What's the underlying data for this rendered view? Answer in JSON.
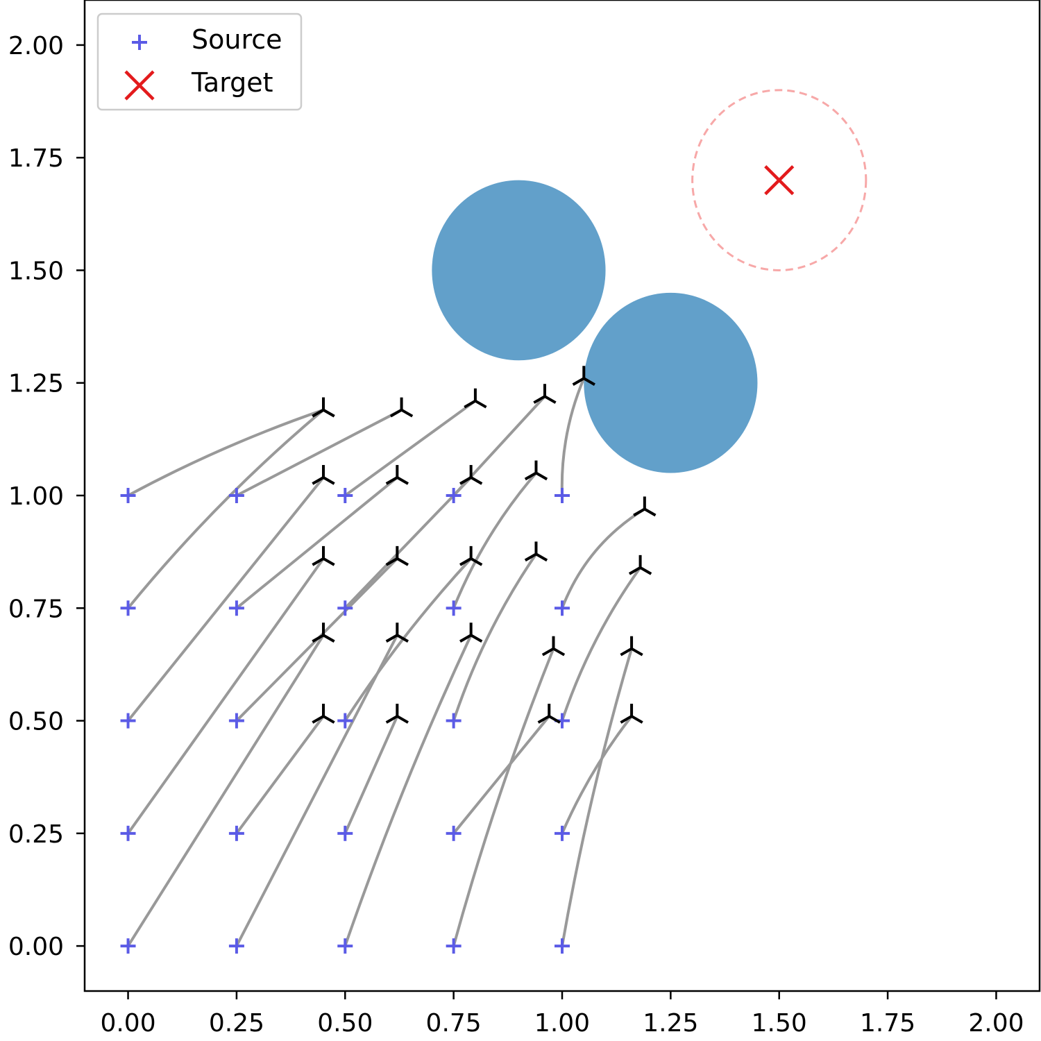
{
  "chart_data": {
    "type": "scatter",
    "title": "",
    "xlabel": "",
    "ylabel": "",
    "xlim": [
      -0.1,
      2.1
    ],
    "ylim": [
      -0.1,
      2.1
    ],
    "xticks": [
      "0.00",
      "0.25",
      "0.50",
      "0.75",
      "1.00",
      "1.25",
      "1.50",
      "1.75",
      "2.00"
    ],
    "yticks": [
      "0.00",
      "0.25",
      "0.50",
      "0.75",
      "1.00",
      "1.25",
      "1.50",
      "1.75",
      "2.00"
    ],
    "grid": false,
    "legend": {
      "placement": "top-left",
      "entries": [
        {
          "label": "Source",
          "marker": "plus",
          "color": "#5b5be6"
        },
        {
          "label": "Target",
          "marker": "x",
          "color": "#e31a1c"
        }
      ]
    },
    "target": {
      "x": 1.5,
      "y": 1.7,
      "radius": 0.2,
      "color": "#e31a1c",
      "circle_color": "#f7a8a8"
    },
    "obstacles": [
      {
        "x": 0.9,
        "y": 1.5,
        "radius": 0.2,
        "color": "#62a0ca"
      },
      {
        "x": 1.25,
        "y": 1.25,
        "radius": 0.2,
        "color": "#62a0ca"
      }
    ],
    "colors": {
      "source": "#5b5be6",
      "endpoint": "#000000",
      "path": "#999999"
    },
    "trajectories": [
      {
        "start": [
          0.0,
          0.0
        ],
        "end": [
          0.45,
          0.69
        ],
        "curve": 0.0
      },
      {
        "start": [
          0.25,
          0.0
        ],
        "end": [
          0.62,
          0.69
        ],
        "curve": 0.0
      },
      {
        "start": [
          0.5,
          0.0
        ],
        "end": [
          0.79,
          0.69
        ],
        "curve": 0.02
      },
      {
        "start": [
          0.75,
          0.0
        ],
        "end": [
          0.98,
          0.66
        ],
        "curve": 0.02
      },
      {
        "start": [
          1.0,
          0.0
        ],
        "end": [
          1.16,
          0.66
        ],
        "curve": 0.02
      },
      {
        "start": [
          0.0,
          0.25
        ],
        "end": [
          0.45,
          0.86
        ],
        "curve": 0.0
      },
      {
        "start": [
          0.25,
          0.25
        ],
        "end": [
          0.45,
          0.51
        ],
        "curve": 0.0
      },
      {
        "start": [
          0.5,
          0.25
        ],
        "end": [
          0.62,
          0.51
        ],
        "curve": 0.0
      },
      {
        "start": [
          0.75,
          0.25
        ],
        "end": [
          0.97,
          0.51
        ],
        "curve": 0.0
      },
      {
        "start": [
          1.0,
          0.25
        ],
        "end": [
          1.16,
          0.51
        ],
        "curve": 0.02
      },
      {
        "start": [
          0.0,
          0.5
        ],
        "end": [
          0.45,
          1.04
        ],
        "curve": 0.0
      },
      {
        "start": [
          0.25,
          0.5
        ],
        "end": [
          0.62,
          0.86
        ],
        "curve": 0.0
      },
      {
        "start": [
          0.5,
          0.5
        ],
        "end": [
          0.79,
          0.86
        ],
        "curve": 0.02
      },
      {
        "start": [
          0.75,
          0.5
        ],
        "end": [
          0.94,
          0.87
        ],
        "curve": 0.03
      },
      {
        "start": [
          1.0,
          0.5
        ],
        "end": [
          1.18,
          0.84
        ],
        "curve": 0.03
      },
      {
        "start": [
          0.0,
          0.75
        ],
        "end": [
          0.45,
          1.19
        ],
        "curve": 0.03
      },
      {
        "start": [
          0.25,
          0.75
        ],
        "end": [
          0.62,
          1.04
        ],
        "curve": 0.0
      },
      {
        "start": [
          0.5,
          0.75
        ],
        "end": [
          0.79,
          1.04
        ],
        "curve": 0.0
      },
      {
        "start": [
          0.75,
          0.75
        ],
        "end": [
          0.94,
          1.05
        ],
        "curve": 0.03
      },
      {
        "start": [
          1.0,
          0.75
        ],
        "end": [
          1.19,
          0.97
        ],
        "curve": 0.05
      },
      {
        "start": [
          0.0,
          1.0
        ],
        "end": [
          0.45,
          1.19
        ],
        "curve": 0.02
      },
      {
        "start": [
          0.25,
          1.0
        ],
        "end": [
          0.63,
          1.19
        ],
        "curve": 0.0
      },
      {
        "start": [
          0.5,
          1.0
        ],
        "end": [
          0.8,
          1.21
        ],
        "curve": 0.0
      },
      {
        "start": [
          0.75,
          1.0
        ],
        "end": [
          0.96,
          1.22
        ],
        "curve": 0.0
      },
      {
        "start": [
          1.0,
          1.0
        ],
        "end": [
          1.05,
          1.26
        ],
        "curve": 0.03
      }
    ]
  }
}
